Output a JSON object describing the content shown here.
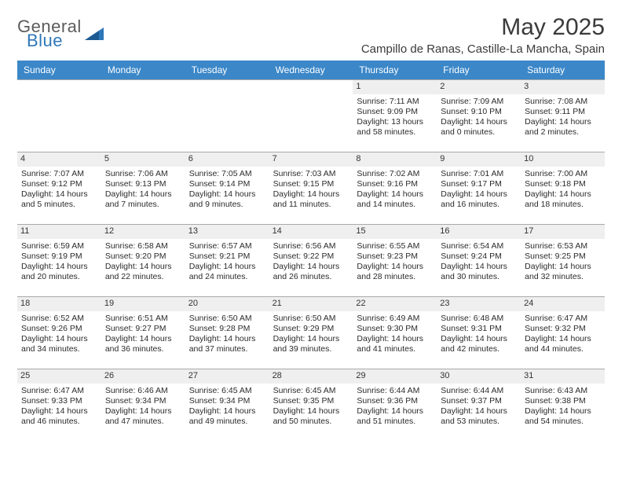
{
  "logo": {
    "general": "General",
    "blue": "Blue"
  },
  "title": "May 2025",
  "location": "Campillo de Ranas, Castille-La Mancha, Spain",
  "colors": {
    "header_bg": "#3b87c8",
    "header_text": "#ffffff",
    "daynum_bg": "#efefef",
    "border": "#a9a9a9",
    "text": "#2b2b2b",
    "logo_gray": "#5b5b5b",
    "logo_blue": "#2e77b8"
  },
  "day_headers": [
    "Sunday",
    "Monday",
    "Tuesday",
    "Wednesday",
    "Thursday",
    "Friday",
    "Saturday"
  ],
  "cells": [
    {
      "empty": true
    },
    {
      "empty": true
    },
    {
      "empty": true
    },
    {
      "empty": true
    },
    {
      "num": "1",
      "sunrise": "Sunrise: 7:11 AM",
      "sunset": "Sunset: 9:09 PM",
      "day1": "Daylight: 13 hours",
      "day2": "and 58 minutes."
    },
    {
      "num": "2",
      "sunrise": "Sunrise: 7:09 AM",
      "sunset": "Sunset: 9:10 PM",
      "day1": "Daylight: 14 hours",
      "day2": "and 0 minutes."
    },
    {
      "num": "3",
      "sunrise": "Sunrise: 7:08 AM",
      "sunset": "Sunset: 9:11 PM",
      "day1": "Daylight: 14 hours",
      "day2": "and 2 minutes."
    },
    {
      "num": "4",
      "sunrise": "Sunrise: 7:07 AM",
      "sunset": "Sunset: 9:12 PM",
      "day1": "Daylight: 14 hours",
      "day2": "and 5 minutes."
    },
    {
      "num": "5",
      "sunrise": "Sunrise: 7:06 AM",
      "sunset": "Sunset: 9:13 PM",
      "day1": "Daylight: 14 hours",
      "day2": "and 7 minutes."
    },
    {
      "num": "6",
      "sunrise": "Sunrise: 7:05 AM",
      "sunset": "Sunset: 9:14 PM",
      "day1": "Daylight: 14 hours",
      "day2": "and 9 minutes."
    },
    {
      "num": "7",
      "sunrise": "Sunrise: 7:03 AM",
      "sunset": "Sunset: 9:15 PM",
      "day1": "Daylight: 14 hours",
      "day2": "and 11 minutes."
    },
    {
      "num": "8",
      "sunrise": "Sunrise: 7:02 AM",
      "sunset": "Sunset: 9:16 PM",
      "day1": "Daylight: 14 hours",
      "day2": "and 14 minutes."
    },
    {
      "num": "9",
      "sunrise": "Sunrise: 7:01 AM",
      "sunset": "Sunset: 9:17 PM",
      "day1": "Daylight: 14 hours",
      "day2": "and 16 minutes."
    },
    {
      "num": "10",
      "sunrise": "Sunrise: 7:00 AM",
      "sunset": "Sunset: 9:18 PM",
      "day1": "Daylight: 14 hours",
      "day2": "and 18 minutes."
    },
    {
      "num": "11",
      "sunrise": "Sunrise: 6:59 AM",
      "sunset": "Sunset: 9:19 PM",
      "day1": "Daylight: 14 hours",
      "day2": "and 20 minutes."
    },
    {
      "num": "12",
      "sunrise": "Sunrise: 6:58 AM",
      "sunset": "Sunset: 9:20 PM",
      "day1": "Daylight: 14 hours",
      "day2": "and 22 minutes."
    },
    {
      "num": "13",
      "sunrise": "Sunrise: 6:57 AM",
      "sunset": "Sunset: 9:21 PM",
      "day1": "Daylight: 14 hours",
      "day2": "and 24 minutes."
    },
    {
      "num": "14",
      "sunrise": "Sunrise: 6:56 AM",
      "sunset": "Sunset: 9:22 PM",
      "day1": "Daylight: 14 hours",
      "day2": "and 26 minutes."
    },
    {
      "num": "15",
      "sunrise": "Sunrise: 6:55 AM",
      "sunset": "Sunset: 9:23 PM",
      "day1": "Daylight: 14 hours",
      "day2": "and 28 minutes."
    },
    {
      "num": "16",
      "sunrise": "Sunrise: 6:54 AM",
      "sunset": "Sunset: 9:24 PM",
      "day1": "Daylight: 14 hours",
      "day2": "and 30 minutes."
    },
    {
      "num": "17",
      "sunrise": "Sunrise: 6:53 AM",
      "sunset": "Sunset: 9:25 PM",
      "day1": "Daylight: 14 hours",
      "day2": "and 32 minutes."
    },
    {
      "num": "18",
      "sunrise": "Sunrise: 6:52 AM",
      "sunset": "Sunset: 9:26 PM",
      "day1": "Daylight: 14 hours",
      "day2": "and 34 minutes."
    },
    {
      "num": "19",
      "sunrise": "Sunrise: 6:51 AM",
      "sunset": "Sunset: 9:27 PM",
      "day1": "Daylight: 14 hours",
      "day2": "and 36 minutes."
    },
    {
      "num": "20",
      "sunrise": "Sunrise: 6:50 AM",
      "sunset": "Sunset: 9:28 PM",
      "day1": "Daylight: 14 hours",
      "day2": "and 37 minutes."
    },
    {
      "num": "21",
      "sunrise": "Sunrise: 6:50 AM",
      "sunset": "Sunset: 9:29 PM",
      "day1": "Daylight: 14 hours",
      "day2": "and 39 minutes."
    },
    {
      "num": "22",
      "sunrise": "Sunrise: 6:49 AM",
      "sunset": "Sunset: 9:30 PM",
      "day1": "Daylight: 14 hours",
      "day2": "and 41 minutes."
    },
    {
      "num": "23",
      "sunrise": "Sunrise: 6:48 AM",
      "sunset": "Sunset: 9:31 PM",
      "day1": "Daylight: 14 hours",
      "day2": "and 42 minutes."
    },
    {
      "num": "24",
      "sunrise": "Sunrise: 6:47 AM",
      "sunset": "Sunset: 9:32 PM",
      "day1": "Daylight: 14 hours",
      "day2": "and 44 minutes."
    },
    {
      "num": "25",
      "sunrise": "Sunrise: 6:47 AM",
      "sunset": "Sunset: 9:33 PM",
      "day1": "Daylight: 14 hours",
      "day2": "and 46 minutes."
    },
    {
      "num": "26",
      "sunrise": "Sunrise: 6:46 AM",
      "sunset": "Sunset: 9:34 PM",
      "day1": "Daylight: 14 hours",
      "day2": "and 47 minutes."
    },
    {
      "num": "27",
      "sunrise": "Sunrise: 6:45 AM",
      "sunset": "Sunset: 9:34 PM",
      "day1": "Daylight: 14 hours",
      "day2": "and 49 minutes."
    },
    {
      "num": "28",
      "sunrise": "Sunrise: 6:45 AM",
      "sunset": "Sunset: 9:35 PM",
      "day1": "Daylight: 14 hours",
      "day2": "and 50 minutes."
    },
    {
      "num": "29",
      "sunrise": "Sunrise: 6:44 AM",
      "sunset": "Sunset: 9:36 PM",
      "day1": "Daylight: 14 hours",
      "day2": "and 51 minutes."
    },
    {
      "num": "30",
      "sunrise": "Sunrise: 6:44 AM",
      "sunset": "Sunset: 9:37 PM",
      "day1": "Daylight: 14 hours",
      "day2": "and 53 minutes."
    },
    {
      "num": "31",
      "sunrise": "Sunrise: 6:43 AM",
      "sunset": "Sunset: 9:38 PM",
      "day1": "Daylight: 14 hours",
      "day2": "and 54 minutes."
    }
  ]
}
